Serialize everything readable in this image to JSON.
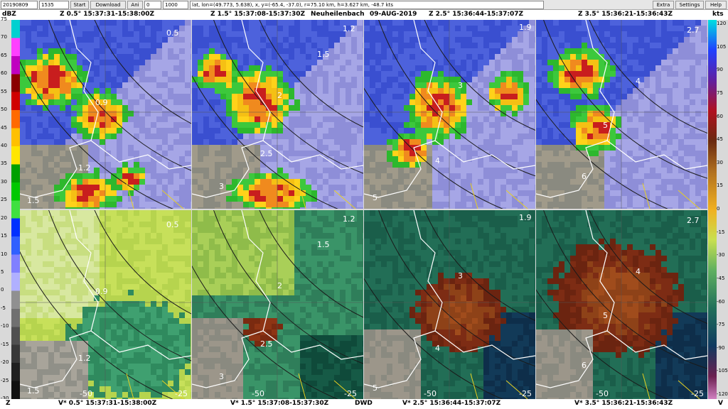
{
  "toolbar": {
    "date": "20190809",
    "time": "1535",
    "start_label": "Start",
    "download_label": "Download",
    "ani_label": "Ani",
    "ani_value": "0",
    "speed_value": "1000",
    "readout": "lat, lon=(49.773, 5.638),  x, y=(-65.4, -37.0),  r=75.10 km,  h=3.627 km,  -48.7 kts",
    "extra_label": "Extra",
    "settings_label": "Settings",
    "help_label": "Help"
  },
  "header": {
    "left_unit": "dBZ",
    "right_unit": "kts",
    "station": "Neuheilenbach",
    "date": "09-AUG-2019",
    "panels": [
      {
        "label": "Z 0.5°  15:37:31-15:38:00Z"
      },
      {
        "label": "Z 1.5°  15:37:08-15:37:30Z"
      },
      {
        "label": "Z 2.5°  15:36:44-15:37:07Z"
      },
      {
        "label": "Z 3.5°  15:36:21-15:36:43Z"
      }
    ]
  },
  "footer": {
    "left_tag": "Z",
    "right_tag": "V",
    "center": "DWD",
    "panels": [
      {
        "label": "V* 0.5°  15:37:31-15:38:00Z"
      },
      {
        "label": "V* 1.5°  15:37:08-15:37:30Z"
      },
      {
        "label": "V* 2.5°  15:36:44-15:37:07Z"
      },
      {
        "label": "V* 3.5°  15:36:21-15:36:43Z"
      }
    ]
  },
  "dbz_scale": [
    "75",
    "70",
    "65",
    "60",
    "55",
    "50",
    "45",
    "40",
    "35",
    "30",
    "25",
    "20",
    "15",
    "10",
    "5",
    "0",
    "-5",
    "-10",
    "-15",
    "-20",
    "-25",
    "-30"
  ],
  "kts_scale": [
    "120",
    "105",
    "90",
    "75",
    "60",
    "45",
    "30",
    "15",
    "0",
    "-15",
    "-30",
    "-45",
    "-60",
    "-75",
    "-90",
    "-105",
    "-120"
  ],
  "panel_annotations": {
    "z05": {
      "c1": "0.5",
      "c2": "0.9",
      "c3": "1.2",
      "c4": "1.5"
    },
    "z15": {
      "c1": "1.2",
      "c2": "1.5",
      "c3": "2",
      "c4": "2.5",
      "c5": "3"
    },
    "z25": {
      "c1": "1.9",
      "c2": "3",
      "c3": "4",
      "c4": "5"
    },
    "z35": {
      "c1": "2.7",
      "c2": "4",
      "c3": "5",
      "c4": "6"
    },
    "v05": {
      "c1": "0.5",
      "c2": "0.9",
      "c3": "1.2",
      "c4": "1.5",
      "r1": "-50",
      "r2": "-25"
    },
    "v15": {
      "c1": "1.2",
      "c2": "1.5",
      "c3": "2",
      "c4": "2.5",
      "c5": "3",
      "r1": "-50",
      "r2": "-25"
    },
    "v25": {
      "c1": "1.9",
      "c2": "3",
      "c3": "4",
      "c4": "5",
      "r1": "-50",
      "r2": "-25"
    },
    "v35": {
      "c1": "2.7",
      "c2": "4",
      "c3": "5",
      "c4": "6",
      "r1": "-50",
      "r2": "-25"
    }
  },
  "colors": {
    "reflectivity_green": "#2db82d",
    "reflectivity_yellow": "#ffd21a",
    "reflectivity_orange": "#f08a1e",
    "reflectivity_red": "#c81e1e",
    "reflectivity_blue": "#3a4fd0",
    "velocity_inbound": "#1f6e54",
    "velocity_outbound": "#6b2410",
    "velocity_light": "#c7e05a"
  }
}
